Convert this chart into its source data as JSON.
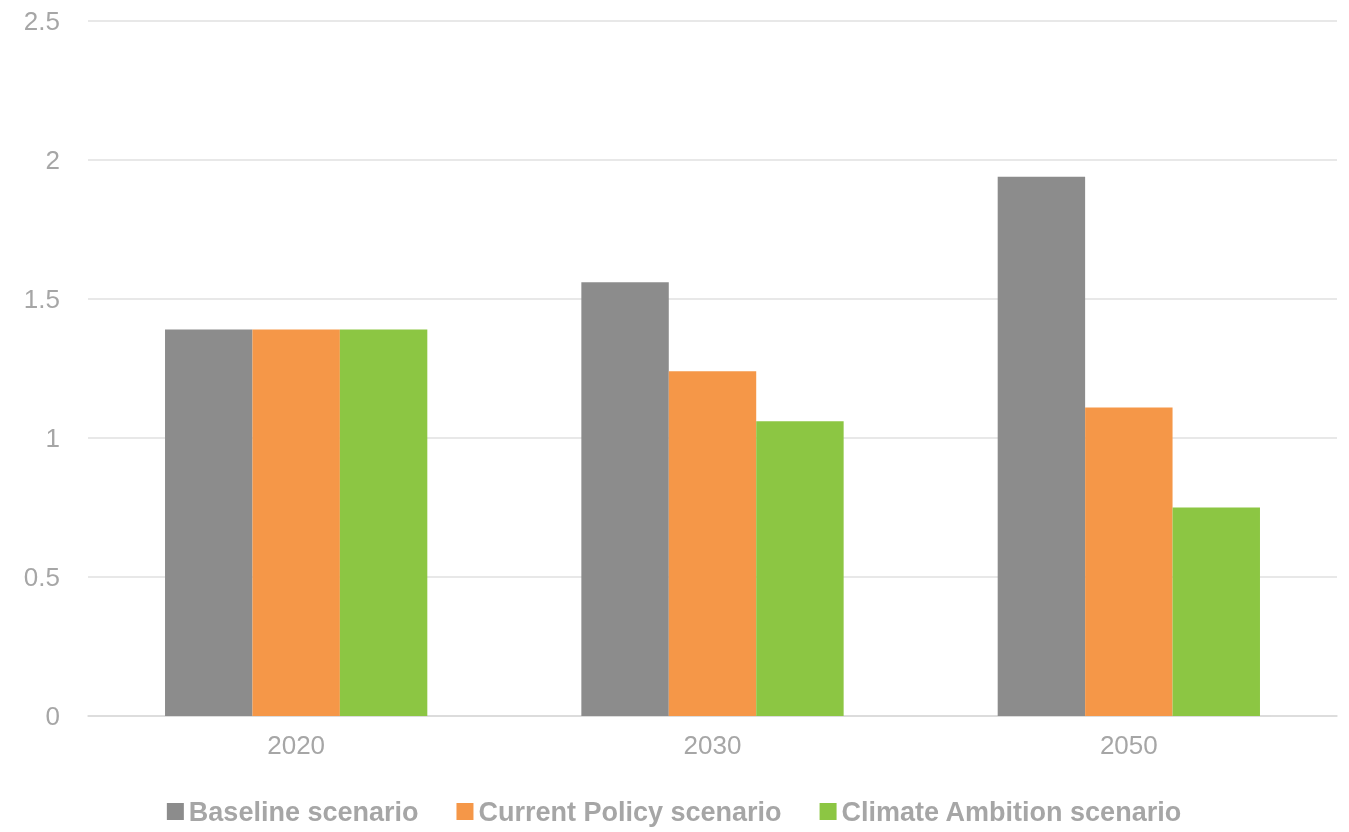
{
  "chart_data": {
    "type": "bar",
    "categories": [
      "2020",
      "2030",
      "2050"
    ],
    "series": [
      {
        "name": "Baseline scenario",
        "color": "#8c8c8c",
        "values": [
          1.39,
          1.56,
          1.94
        ]
      },
      {
        "name": "Current Policy scenario",
        "color": "#f59748",
        "values": [
          1.39,
          1.24,
          1.11
        ]
      },
      {
        "name": "Climate Ambition scenario",
        "color": "#8cc643",
        "values": [
          1.39,
          1.06,
          0.75
        ]
      }
    ],
    "ylim": [
      0,
      2.5
    ],
    "yticks": [
      0,
      0.5,
      1,
      1.5,
      2,
      2.5
    ],
    "grid": "y",
    "legend": "bottom"
  }
}
